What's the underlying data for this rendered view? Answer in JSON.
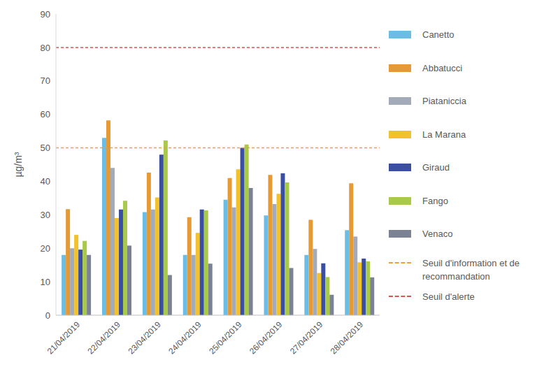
{
  "chart_data": {
    "type": "bar",
    "y_label": "µg/m³",
    "categories": [
      "21/04/2019",
      "22/04/2019",
      "23/04/2019",
      "24/04/2019",
      "25/04/2019",
      "26/04/2019",
      "27/04/2019",
      "28/04/2019"
    ],
    "series": [
      {
        "name": "Canetto",
        "color": "#6cbde6",
        "values": [
          18,
          53,
          30.8,
          18,
          34.5,
          29.8,
          18,
          25.4
        ]
      },
      {
        "name": "Abbatucci",
        "color": "#e59a35",
        "values": [
          31.7,
          58.2,
          42.6,
          29.3,
          41,
          41.9,
          28.5,
          39.4
        ]
      },
      {
        "name": "Piataniccia",
        "color": "#a3abb8",
        "values": [
          20,
          44,
          31.6,
          18,
          32.2,
          33.2,
          19.8,
          23.5
        ]
      },
      {
        "name": "La Marana",
        "color": "#f2c12e",
        "values": [
          24,
          29,
          35.2,
          24.6,
          43.6,
          36.3,
          12.6,
          15.8
        ]
      },
      {
        "name": "Giraud",
        "color": "#3b4fa0",
        "values": [
          19.6,
          31.6,
          48,
          31.6,
          50,
          42.4,
          15.5,
          16.9
        ]
      },
      {
        "name": "Fango",
        "color": "#a9c94a",
        "values": [
          22.2,
          34.2,
          52.2,
          31.3,
          51,
          39.7,
          11.4,
          16.1
        ]
      },
      {
        "name": "Venaco",
        "color": "#7a8294",
        "values": [
          18,
          20.8,
          12,
          15.4,
          38,
          14.1,
          6.1,
          11.3
        ]
      }
    ],
    "reference_lines": [
      {
        "name": "Seuil d'information et de recommandation",
        "value": 50,
        "color": "#e8a33d"
      },
      {
        "name": "Seuil d'alerte",
        "value": 80,
        "color": "#d9534f"
      }
    ],
    "ylim": [
      0,
      90
    ],
    "yticks": [
      0,
      10,
      20,
      30,
      40,
      50,
      60,
      70,
      80,
      90
    ],
    "grid": false,
    "legend": "right"
  }
}
